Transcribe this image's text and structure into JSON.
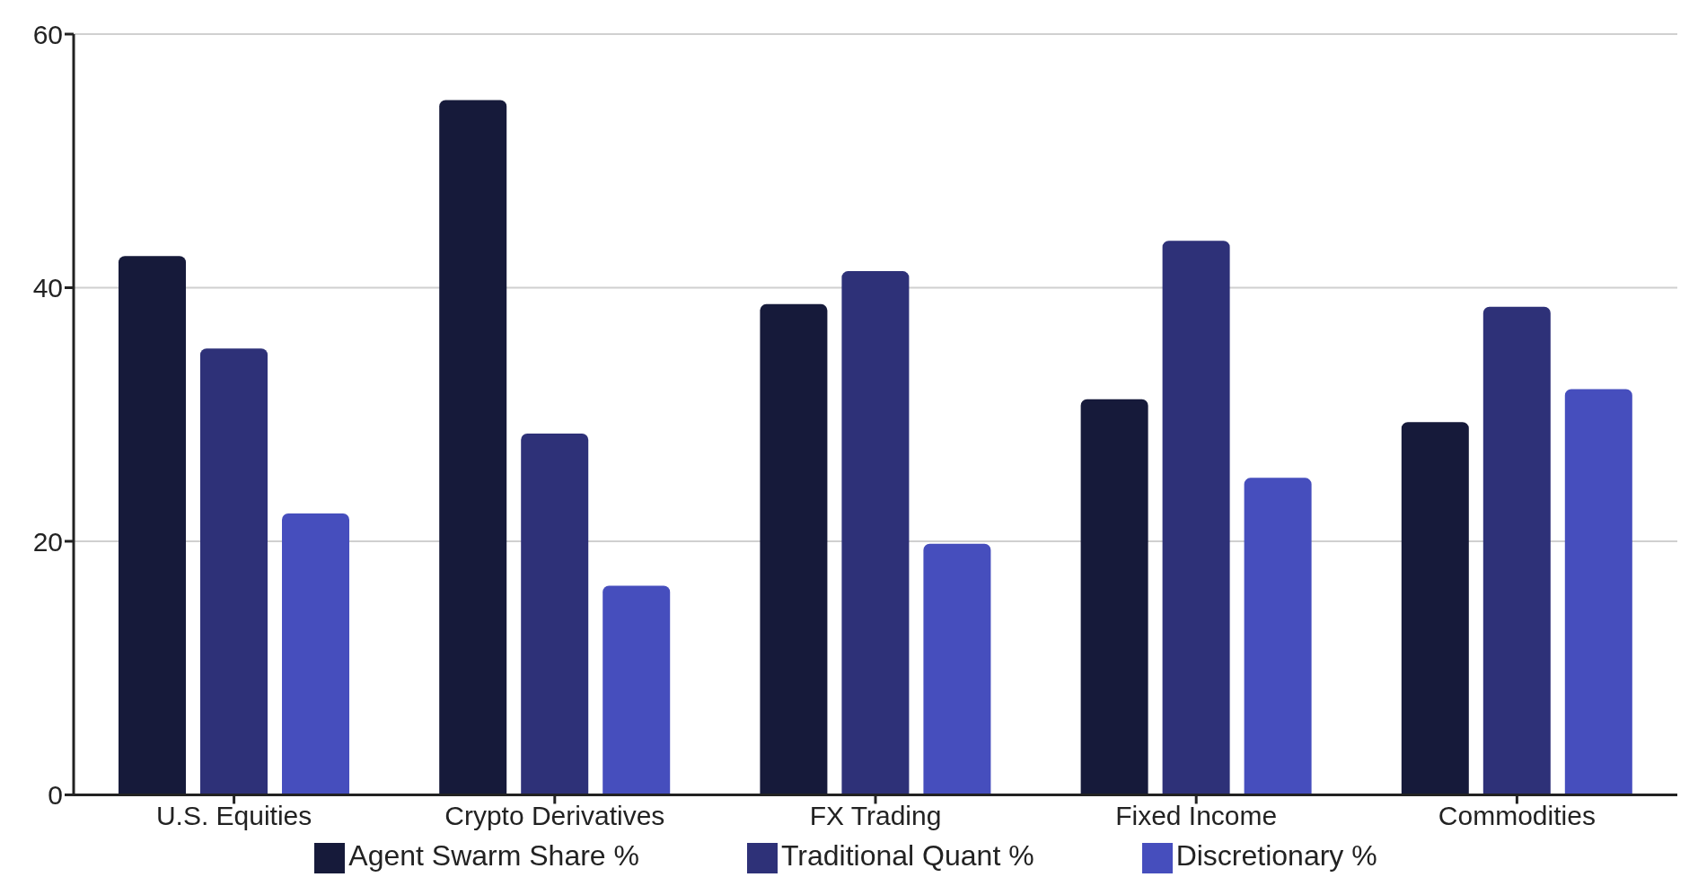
{
  "chart_data": {
    "type": "bar",
    "categories": [
      "U.S. Equities",
      "Crypto Derivatives",
      "FX Trading",
      "Fixed Income",
      "Commodities"
    ],
    "series": [
      {
        "name": "Agent Swarm Share %",
        "color": "#161a3a",
        "values": [
          42.5,
          54.8,
          38.7,
          31.2,
          29.4
        ]
      },
      {
        "name": "Traditional Quant %",
        "color": "#2e3178",
        "values": [
          35.2,
          28.5,
          41.3,
          43.7,
          38.5
        ]
      },
      {
        "name": "Discretionary %",
        "color": "#464ebd",
        "values": [
          22.2,
          16.5,
          19.8,
          25.0,
          32.0
        ]
      }
    ],
    "ylim": [
      0,
      60
    ],
    "yticks": [
      0,
      20,
      40,
      60
    ],
    "grid": "y",
    "legend": "bottom"
  }
}
